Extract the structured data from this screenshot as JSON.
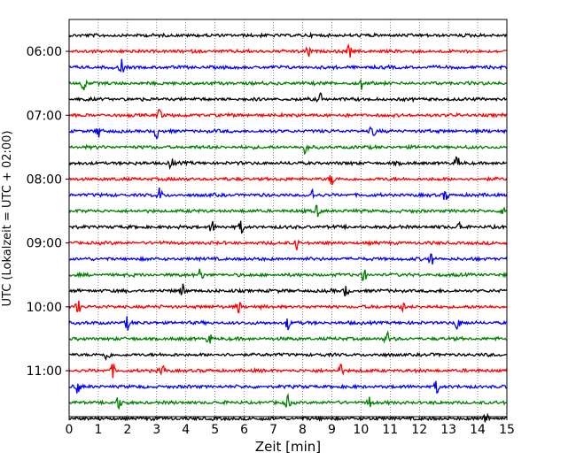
{
  "chart_data": {
    "type": "line",
    "title": "",
    "xlabel": "Zeit  [min]",
    "ylabel": "UTC (Lokalzeit = UTC + 02:00)",
    "xlim": [
      0,
      15
    ],
    "x_ticks": [
      "0",
      "1",
      "2",
      "3",
      "4",
      "5",
      "6",
      "7",
      "8",
      "9",
      "10",
      "11",
      "12",
      "13",
      "14",
      "15"
    ],
    "y_ticks": [
      "06:00",
      "07:00",
      "08:00",
      "09:00",
      "10:00",
      "11:00"
    ],
    "trace_start": "05:45",
    "trace_end": "11:45",
    "trace_interval_min": 15,
    "grid": true,
    "legend": "none",
    "colors": [
      "#000000",
      "#ff0000",
      "#0000ff",
      "#008000"
    ],
    "events": [
      {
        "trace": "06:00",
        "minutes": [
          8.2,
          9.6
        ]
      },
      {
        "trace": "06:15",
        "minutes": [
          1.8
        ]
      },
      {
        "trace": "06:30",
        "minutes": [
          0.5,
          10.0
        ]
      },
      {
        "trace": "06:45",
        "minutes": [
          8.6
        ]
      },
      {
        "trace": "07:00",
        "minutes": [
          3.1
        ]
      },
      {
        "trace": "07:15",
        "minutes": [
          1.0,
          3.0,
          10.4
        ]
      },
      {
        "trace": "07:30",
        "minutes": [
          8.1
        ]
      },
      {
        "trace": "07:45",
        "minutes": [
          3.5,
          13.3
        ]
      },
      {
        "trace": "08:00",
        "minutes": [
          9.0
        ]
      },
      {
        "trace": "08:15",
        "minutes": [
          3.1,
          8.3,
          12.9
        ]
      },
      {
        "trace": "08:30",
        "minutes": [
          8.5,
          14.9
        ]
      },
      {
        "trace": "08:45",
        "minutes": [
          4.9,
          5.9,
          13.4
        ]
      },
      {
        "trace": "09:00",
        "minutes": [
          7.8
        ]
      },
      {
        "trace": "09:15",
        "minutes": [
          12.4
        ]
      },
      {
        "trace": "09:30",
        "minutes": [
          4.5,
          10.1
        ]
      },
      {
        "trace": "09:45",
        "minutes": [
          3.9,
          9.5
        ]
      },
      {
        "trace": "10:00",
        "minutes": [
          0.3,
          5.8,
          11.4
        ]
      },
      {
        "trace": "10:15",
        "minutes": [
          2.0,
          7.5,
          13.3
        ]
      },
      {
        "trace": "10:30",
        "minutes": [
          4.8,
          10.9
        ]
      },
      {
        "trace": "10:45",
        "minutes": [
          1.3
        ]
      },
      {
        "trace": "11:00",
        "minutes": [
          1.5,
          3.2,
          9.3
        ]
      },
      {
        "trace": "11:15",
        "minutes": [
          0.3,
          12.6
        ]
      },
      {
        "trace": "11:30",
        "minutes": [
          1.7,
          7.5,
          10.3
        ]
      },
      {
        "trace": "11:45",
        "minutes": [
          14.3
        ]
      }
    ]
  }
}
